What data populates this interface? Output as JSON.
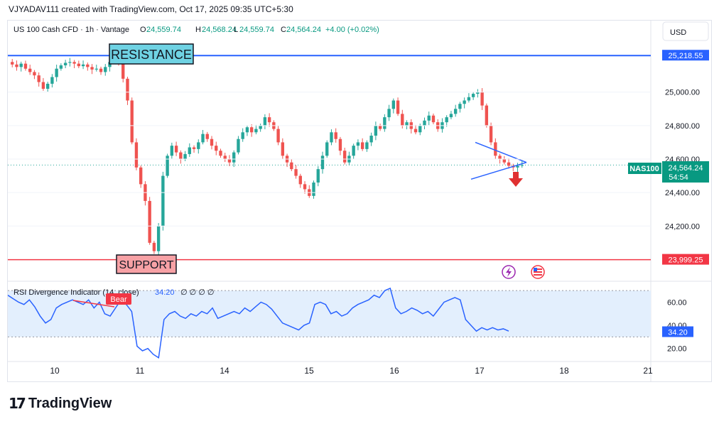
{
  "header": {
    "creator_line": "VJYADAV111 created with TradingView.com, Oct 17, 2025 09:35 UTC+5:30"
  },
  "legend": {
    "symbol": "US 100 Cash CFD · 1h · Vantage",
    "o_label": "O",
    "o_value": "24,559.74",
    "h_label": "H",
    "h_value": "24,568.24",
    "l_label": "L",
    "l_value": "24,559.74",
    "c_label": "C",
    "c_value": "24,564.24",
    "change": "+4.00 (+0.02%)"
  },
  "currency_button": "USD",
  "annotations": {
    "resistance_label": "RESISTANCE",
    "support_label": "SUPPORT",
    "resistance_price": "25,218.55",
    "support_price": "23,999.25",
    "symbol_tag": "NAS100",
    "last_price": "24,564.24",
    "countdown": "54:54",
    "bear_label": "Bear",
    "rsi_value_tag": "34.20"
  },
  "rsi_legend": {
    "name": "RSI Divergence Indicator (14, close)",
    "value": "34.20",
    "extras": "∅ ∅ ∅ ∅"
  },
  "footer": {
    "brand": "TradingView"
  },
  "colors": {
    "up": "#26a69a",
    "down": "#ef5350",
    "resistance": "#2962ff",
    "support": "#f23645",
    "rsi": "#2962ff",
    "rsi_band": "#e3effd",
    "label_resistance_bg": "#6fd2e3",
    "label_support_bg": "#f7a1a5"
  },
  "chart_data": {
    "type": "candlestick",
    "x_ticks": [
      "10",
      "11",
      "14",
      "15",
      "16",
      "17",
      "18",
      "21"
    ],
    "y_ticks": [
      "25,000.00",
      "24,800.00",
      "24,600.00",
      "24,400.00",
      "24,200.00"
    ],
    "y_tick_values": [
      25000,
      24800,
      24600,
      24400,
      24200
    ],
    "ylim": [
      23900,
      25300
    ],
    "resistance": 25218.55,
    "support": 23999.25,
    "last_price": 24564.24,
    "price_path": [
      25180,
      25165,
      25150,
      25170,
      25140,
      25120,
      25100,
      25060,
      25020,
      25050,
      25090,
      25140,
      25160,
      25175,
      25180,
      25170,
      25155,
      25165,
      25150,
      25135,
      25140,
      25120,
      25150,
      25180,
      25200,
      25175,
      25080,
      24950,
      24700,
      24550,
      24450,
      24350,
      24100,
      24050,
      24200,
      24500,
      24620,
      24680,
      24640,
      24600,
      24630,
      24670,
      24660,
      24700,
      24750,
      24720,
      24680,
      24650,
      24620,
      24600,
      24580,
      24640,
      24720,
      24760,
      24790,
      24760,
      24780,
      24800,
      24850,
      24820,
      24780,
      24700,
      24620,
      24580,
      24540,
      24500,
      24450,
      24420,
      24380,
      24460,
      24540,
      24620,
      24700,
      24760,
      24720,
      24650,
      24580,
      24620,
      24680,
      24700,
      24660,
      24700,
      24740,
      24800,
      24780,
      24850,
      24900,
      24950,
      24870,
      24800,
      24820,
      24780,
      24760,
      24800,
      24830,
      24860,
      24820,
      24780,
      24820,
      24850,
      24870,
      24900,
      24930,
      24950,
      24970,
      24990,
      25000,
      24920,
      24800,
      24700,
      24620,
      24600,
      24580,
      24560,
      24550,
      24560,
      24564
    ],
    "triangle": {
      "upper": [
        [
          24.4,
          24700
        ],
        [
          27.4,
          24580
        ]
      ],
      "lower": [
        [
          24.4,
          24480
        ],
        [
          27.4,
          24580
        ]
      ]
    },
    "rsi": {
      "ylim": [
        10,
        75
      ],
      "y_ticks": [
        "60.00",
        "40.00",
        "20.00"
      ],
      "y_tick_values": [
        60,
        40,
        20
      ],
      "band": [
        30,
        70
      ],
      "last": 34.2,
      "values": [
        66,
        63,
        60,
        58,
        62,
        56,
        48,
        42,
        45,
        55,
        58,
        60,
        62,
        60,
        58,
        62,
        55,
        60,
        50,
        48,
        55,
        62,
        58,
        52,
        22,
        18,
        20,
        15,
        12,
        45,
        50,
        52,
        48,
        46,
        50,
        48,
        52,
        50,
        55,
        46,
        48,
        50,
        52,
        50,
        55,
        52,
        56,
        60,
        58,
        54,
        48,
        42,
        40,
        38,
        36,
        40,
        42,
        58,
        60,
        58,
        50,
        52,
        48,
        50,
        55,
        58,
        60,
        62,
        66,
        64,
        70,
        72,
        55,
        50,
        52,
        55,
        53,
        50,
        52,
        48,
        54,
        60,
        62,
        64,
        62,
        45,
        40,
        35,
        38,
        36,
        38,
        36,
        37,
        35
      ]
    }
  }
}
